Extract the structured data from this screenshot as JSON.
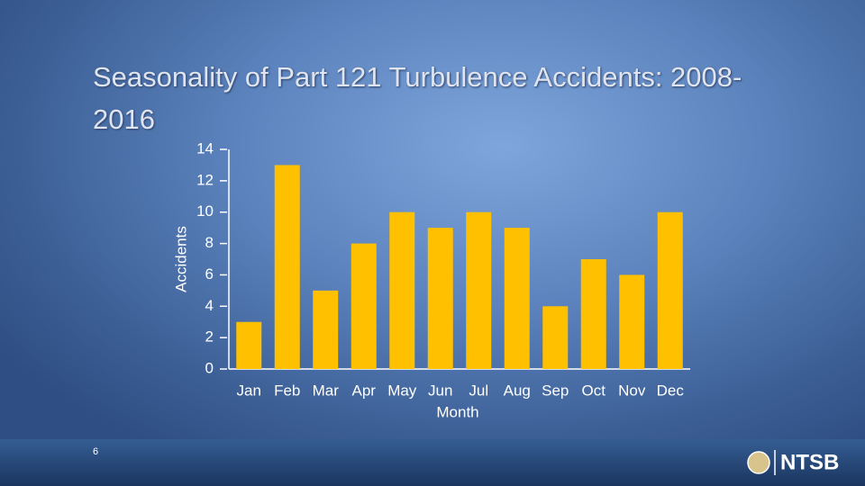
{
  "chart_data": {
    "type": "bar",
    "title": "Seasonality of Part 121 Turbulence Accidents: 2008-2016",
    "x_label": "Month",
    "y_label": "Accidents",
    "categories": [
      "Jan",
      "Feb",
      "Mar",
      "Apr",
      "May",
      "Jun",
      "Jul",
      "Aug",
      "Sep",
      "Oct",
      "Nov",
      "Dec"
    ],
    "values": [
      3,
      13,
      5,
      8,
      10,
      9,
      10,
      9,
      4,
      7,
      6,
      10
    ],
    "color": "#ffc000",
    "ylim": [
      0,
      14
    ],
    "yticks": [
      0,
      2,
      4,
      6,
      8,
      10,
      12,
      14
    ],
    "grid": false
  },
  "slide": {
    "page_number": "6",
    "logo_text": "NTSB"
  }
}
